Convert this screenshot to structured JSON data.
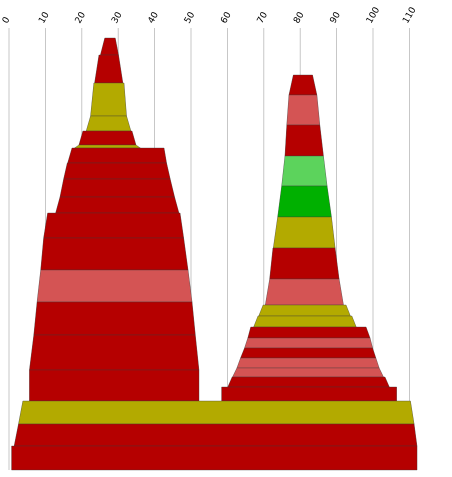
{
  "colors": {
    "background": "#ffffff",
    "grid": "#b9b9b9",
    "dark_red": "#b50000",
    "light_red": "#d45454",
    "olive": "#b3aa00",
    "light_green": "#5cd35c",
    "green": "#00b000"
  },
  "chart_data": {
    "type": "area",
    "title": "",
    "xlabel": "",
    "ylabel": "",
    "grid": true,
    "legend": "none",
    "xlim": [
      0,
      115
    ],
    "x_ticks": [
      0,
      10,
      20,
      30,
      40,
      50,
      60,
      70,
      80,
      90,
      100,
      110
    ],
    "y_range_rows": [
      0,
      470
    ],
    "description_of_y": "rows counted from top of stack (unlabeled)",
    "stacks": [
      {
        "shape": "left-peak",
        "bands": [
          {
            "y_top": 38,
            "y_bottom": 55,
            "x_left": 26.3,
            "x_right": 29.2,
            "color": "dark_red"
          },
          {
            "y_top": 55,
            "y_bottom": 83,
            "x_left": 24.7,
            "x_right": 30.1,
            "color": "dark_red"
          },
          {
            "y_top": 83,
            "y_bottom": 116,
            "x_left": 23.3,
            "x_right": 31.6,
            "color": "olive"
          },
          {
            "y_top": 116,
            "y_bottom": 131,
            "x_left": 22.4,
            "x_right": 32.3,
            "color": "olive"
          },
          {
            "y_top": 131,
            "y_bottom": 145,
            "x_left": 20.3,
            "x_right": 33.8,
            "color": "dark_red"
          },
          {
            "y_top": 145,
            "y_bottom": 148,
            "x_left": 19.2,
            "x_right": 34.9,
            "color": "olive"
          },
          {
            "y_top": 148,
            "y_bottom": 163,
            "x_left": 17.3,
            "x_right": 42.6,
            "color": "dark_red"
          },
          {
            "y_top": 163,
            "y_bottom": 179,
            "x_left": 16.0,
            "x_right": 43.3,
            "color": "dark_red"
          },
          {
            "y_top": 179,
            "y_bottom": 197,
            "x_left": 15.0,
            "x_right": 44.3,
            "color": "dark_red"
          },
          {
            "y_top": 197,
            "y_bottom": 213,
            "x_left": 14.0,
            "x_right": 45.5,
            "color": "dark_red"
          },
          {
            "y_top": 213,
            "y_bottom": 238,
            "x_left": 10.6,
            "x_right": 47.0,
            "color": "dark_red"
          },
          {
            "y_top": 238,
            "y_bottom": 270,
            "x_left": 9.5,
            "x_right": 48.0,
            "color": "dark_red"
          },
          {
            "y_top": 270,
            "y_bottom": 302,
            "x_left": 8.7,
            "x_right": 49.2,
            "color": "light_red"
          },
          {
            "y_top": 302,
            "y_bottom": 335,
            "x_left": 7.7,
            "x_right": 50.3,
            "color": "dark_red"
          },
          {
            "y_top": 335,
            "y_bottom": 370,
            "x_left": 6.8,
            "x_right": 51.2,
            "color": "dark_red"
          },
          {
            "y_top": 370,
            "y_bottom": 401,
            "x_left": 5.6,
            "x_right": 52.2,
            "color": "dark_red"
          }
        ]
      },
      {
        "shape": "right-peak",
        "bands": [
          {
            "y_top": 75,
            "y_bottom": 95,
            "x_left": 78.1,
            "x_right": 83.4,
            "color": "dark_red"
          },
          {
            "y_top": 95,
            "y_bottom": 125,
            "x_left": 76.9,
            "x_right": 84.6,
            "color": "light_red"
          },
          {
            "y_top": 125,
            "y_bottom": 156,
            "x_left": 76.3,
            "x_right": 85.4,
            "color": "dark_red"
          },
          {
            "y_top": 156,
            "y_bottom": 186,
            "x_left": 75.8,
            "x_right": 86.4,
            "color": "light_green"
          },
          {
            "y_top": 186,
            "y_bottom": 217,
            "x_left": 74.9,
            "x_right": 87.4,
            "color": "green"
          },
          {
            "y_top": 217,
            "y_bottom": 248,
            "x_left": 73.8,
            "x_right": 88.6,
            "color": "olive"
          },
          {
            "y_top": 248,
            "y_bottom": 279,
            "x_left": 72.5,
            "x_right": 89.6,
            "color": "dark_red"
          },
          {
            "y_top": 279,
            "y_bottom": 305,
            "x_left": 71.6,
            "x_right": 90.7,
            "color": "light_red"
          },
          {
            "y_top": 305,
            "y_bottom": 316,
            "x_left": 69.8,
            "x_right": 92.6,
            "color": "olive"
          },
          {
            "y_top": 316,
            "y_bottom": 327,
            "x_left": 68.4,
            "x_right": 94.2,
            "color": "olive"
          },
          {
            "y_top": 327,
            "y_bottom": 338,
            "x_left": 66.4,
            "x_right": 98.1,
            "color": "dark_red"
          },
          {
            "y_top": 338,
            "y_bottom": 348,
            "x_left": 65.6,
            "x_right": 99.2,
            "color": "light_red"
          },
          {
            "y_top": 348,
            "y_bottom": 358,
            "x_left": 64.7,
            "x_right": 99.9,
            "color": "dark_red"
          },
          {
            "y_top": 358,
            "y_bottom": 368,
            "x_left": 63.6,
            "x_right": 100.8,
            "color": "light_red"
          },
          {
            "y_top": 368,
            "y_bottom": 377,
            "x_left": 62.6,
            "x_right": 101.7,
            "color": "light_red"
          },
          {
            "y_top": 377,
            "y_bottom": 387,
            "x_left": 61.3,
            "x_right": 103.3,
            "color": "dark_red"
          },
          {
            "y_top": 387,
            "y_bottom": 401,
            "x_left": 58.4,
            "x_right": 106.5,
            "color": "dark_red"
          }
        ]
      },
      {
        "shape": "base",
        "bands": [
          {
            "y_top": 401,
            "y_bottom": 424,
            "x_left": 3.8,
            "x_right": 110.3,
            "color": "olive"
          },
          {
            "y_top": 424,
            "y_bottom": 446,
            "x_left": 2.6,
            "x_right": 111.3,
            "color": "dark_red"
          },
          {
            "y_top": 446,
            "y_bottom": 470,
            "x_left": 0.7,
            "x_right": 112.1,
            "color": "dark_red"
          }
        ]
      }
    ]
  }
}
